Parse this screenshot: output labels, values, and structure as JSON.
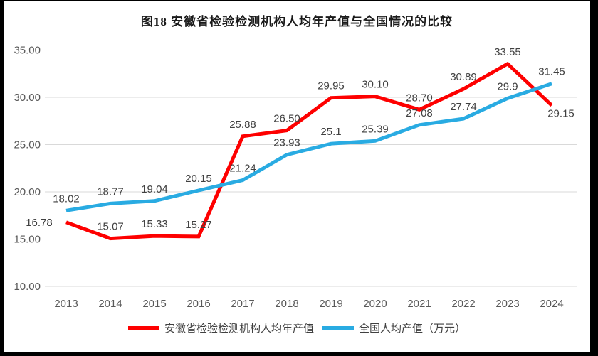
{
  "title": "图18 安徽省检验检测机构人均年产值与全国情况的比较",
  "colors": {
    "anhui_red": "#FE0000",
    "national_blue": "#29ABE2",
    "gridline": "#D9D9D9",
    "axis_text": "#595959",
    "data_label_text": "#404040",
    "frame_border": "#000000",
    "background": "#FFFFFF"
  },
  "chart_data": {
    "type": "line",
    "title": "图18 安徽省检验检测机构人均年产值与全国情况的比较",
    "categories": [
      "2013",
      "2014",
      "2015",
      "2016",
      "2017",
      "2018",
      "2019",
      "2020",
      "2021",
      "2022",
      "2023",
      "2024"
    ],
    "series": [
      {
        "name": "安徽省检验检测机构人均年产值",
        "color": "#FE0000",
        "values": [
          16.78,
          15.07,
          15.33,
          15.27,
          25.88,
          26.5,
          29.95,
          30.1,
          28.7,
          30.89,
          33.55,
          29.15
        ],
        "labels": [
          "16.78",
          "15.07",
          "15.33",
          "15.27",
          "25.88",
          "26.50",
          "29.95",
          "30.10",
          "28.70",
          "30.89",
          "33.55",
          "29.15"
        ]
      },
      {
        "name": "全国人均产值（万元）",
        "color": "#29ABE2",
        "values": [
          18.02,
          18.77,
          19.04,
          20.15,
          21.24,
          23.93,
          25.1,
          25.39,
          27.08,
          27.74,
          29.9,
          31.45
        ],
        "labels": [
          "18.02",
          "18.77",
          "19.04",
          "20.15",
          "21.24",
          "23.93",
          "25.1",
          "25.39",
          "27.08",
          "27.74",
          "29.9",
          "31.45"
        ]
      }
    ],
    "xlabel": "",
    "ylabel": "",
    "ylim": [
      10,
      35
    ],
    "yticks": {
      "values": [
        10,
        15,
        20,
        25,
        30,
        35
      ],
      "labels": [
        "10.00",
        "15.00",
        "20.00",
        "25.00",
        "30.00",
        "35.00"
      ]
    },
    "grid": "horizontal",
    "legend_position": "bottom"
  }
}
